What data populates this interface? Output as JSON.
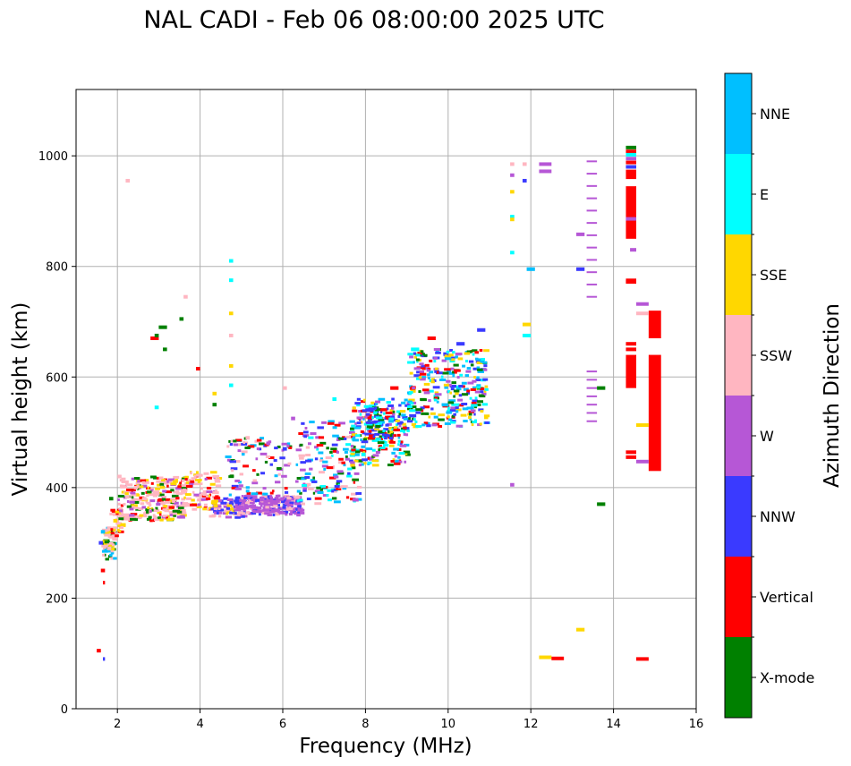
{
  "chart_data": {
    "type": "scatter",
    "title": "NAL CADI - Feb 06 08:00:00 2025 UTC",
    "xlabel": "Frequency (MHz)",
    "ylabel": "Virtual height (km)",
    "xlim": [
      1,
      16
    ],
    "ylim": [
      0,
      1120
    ],
    "xticks": [
      2,
      4,
      6,
      8,
      10,
      12,
      14,
      16
    ],
    "yticks": [
      0,
      200,
      400,
      600,
      800,
      1000
    ],
    "grid": true,
    "colorbar": {
      "label": "Azimuth Direction",
      "categories": [
        "X-mode",
        "Vertical",
        "NNW",
        "W",
        "SSW",
        "SSE",
        "E",
        "NNE"
      ],
      "colors": [
        "#008000",
        "#ff0000",
        "#3a3aff",
        "#b657d6",
        "#ffb6c1",
        "#ffd700",
        "#00ffff",
        "#00bfff"
      ]
    },
    "segments": [
      [
        1.5,
        1.6,
        105,
        1
      ],
      [
        1.65,
        1.7,
        90,
        2
      ],
      [
        1.55,
        1.65,
        300,
        2
      ],
      [
        1.6,
        1.7,
        320,
        7
      ],
      [
        1.6,
        1.7,
        250,
        1
      ],
      [
        1.65,
        1.7,
        228,
        1
      ],
      [
        1.75,
        1.85,
        290,
        4
      ],
      [
        1.9,
        2.0,
        340,
        5
      ],
      [
        1.8,
        1.9,
        380,
        0
      ],
      [
        2.0,
        2.1,
        420,
        4
      ],
      [
        2.2,
        2.3,
        955,
        4
      ],
      [
        2.6,
        2.7,
        380,
        4
      ],
      [
        2.4,
        2.5,
        400,
        4
      ],
      [
        2.9,
        3.0,
        545,
        6
      ],
      [
        2.8,
        3.0,
        670,
        1
      ],
      [
        2.9,
        3.0,
        675,
        0
      ],
      [
        3.0,
        3.2,
        690,
        0
      ],
      [
        3.1,
        3.2,
        650,
        0
      ],
      [
        3.5,
        3.6,
        705,
        0
      ],
      [
        3.6,
        3.7,
        745,
        4
      ],
      [
        3.9,
        4.0,
        615,
        1
      ],
      [
        4.3,
        4.4,
        570,
        5
      ],
      [
        4.3,
        4.4,
        550,
        0
      ],
      [
        4.7,
        4.8,
        810,
        6
      ],
      [
        4.7,
        4.8,
        775,
        6
      ],
      [
        4.7,
        4.8,
        715,
        5
      ],
      [
        4.7,
        4.8,
        675,
        4
      ],
      [
        4.7,
        4.8,
        620,
        5
      ],
      [
        4.7,
        4.8,
        585,
        6
      ],
      [
        5.1,
        5.2,
        490,
        4
      ],
      [
        5.6,
        5.7,
        480,
        3
      ],
      [
        6.0,
        6.1,
        580,
        4
      ],
      [
        6.2,
        6.3,
        525,
        3
      ],
      [
        6.0,
        6.1,
        470,
        2
      ],
      [
        7.2,
        7.3,
        560,
        6
      ],
      [
        7.9,
        8.0,
        460,
        6
      ],
      [
        8.0,
        8.2,
        540,
        2
      ],
      [
        8.6,
        8.8,
        580,
        1
      ],
      [
        9.1,
        9.3,
        650,
        6
      ],
      [
        9.5,
        9.7,
        670,
        1
      ],
      [
        10.2,
        10.4,
        660,
        2
      ],
      [
        10.7,
        10.9,
        685,
        2
      ],
      [
        11.5,
        11.6,
        985,
        4
      ],
      [
        11.5,
        11.6,
        965,
        3
      ],
      [
        11.5,
        11.6,
        935,
        5
      ],
      [
        11.5,
        11.6,
        890,
        6
      ],
      [
        11.5,
        11.6,
        885,
        5
      ],
      [
        11.5,
        11.6,
        825,
        6
      ],
      [
        11.5,
        11.6,
        405,
        3
      ],
      [
        11.8,
        11.9,
        985,
        4
      ],
      [
        11.8,
        11.9,
        955,
        2
      ],
      [
        11.8,
        12.0,
        695,
        5
      ],
      [
        11.8,
        12.0,
        675,
        6
      ],
      [
        11.9,
        12.1,
        795,
        7
      ],
      [
        12.2,
        12.5,
        985,
        3
      ],
      [
        12.2,
        12.5,
        972,
        3
      ],
      [
        12.2,
        12.5,
        93,
        5
      ],
      [
        12.5,
        12.8,
        91,
        1
      ],
      [
        13.1,
        13.3,
        858,
        3
      ],
      [
        13.1,
        13.3,
        795,
        2
      ],
      [
        13.1,
        13.3,
        143,
        5
      ],
      [
        13.6,
        13.8,
        580,
        0
      ],
      [
        13.6,
        13.8,
        370,
        0
      ],
      [
        14.3,
        14.55,
        1015,
        0
      ],
      [
        14.3,
        14.55,
        1008,
        1
      ],
      [
        14.3,
        14.55,
        1002,
        6
      ],
      [
        14.3,
        14.55,
        995,
        3
      ],
      [
        14.3,
        14.55,
        988,
        1
      ],
      [
        14.3,
        14.55,
        980,
        2
      ],
      [
        14.3,
        14.55,
        886,
        3
      ],
      [
        14.3,
        14.55,
        772,
        1
      ],
      [
        14.3,
        14.55,
        660,
        1
      ],
      [
        14.3,
        14.55,
        650,
        1
      ],
      [
        14.3,
        14.55,
        464,
        1
      ],
      [
        14.3,
        14.55,
        455,
        1
      ],
      [
        14.55,
        14.85,
        732,
        3
      ],
      [
        14.55,
        14.85,
        715,
        4
      ],
      [
        14.55,
        14.85,
        513,
        5
      ],
      [
        14.55,
        14.85,
        447,
        3
      ],
      [
        14.55,
        14.85,
        90,
        1
      ],
      [
        14.4,
        14.55,
        830,
        3
      ]
    ],
    "blocks": [
      [
        14.3,
        14.55,
        958,
        975,
        1
      ],
      [
        14.3,
        14.55,
        850,
        945,
        1
      ],
      [
        14.3,
        14.55,
        580,
        640,
        1
      ],
      [
        14.85,
        15.15,
        670,
        720,
        1
      ],
      [
        14.85,
        15.15,
        430,
        640,
        1
      ],
      [
        14.3,
        14.55,
        770,
        778,
        1
      ]
    ],
    "columns": [
      [
        13.35,
        13.6,
        745,
        990,
        3,
        12
      ],
      [
        13.35,
        13.6,
        520,
        610,
        3,
        7
      ]
    ],
    "clusters": [
      [
        1.6,
        1.9,
        270,
        330,
        55,
        [
          4,
          4,
          7,
          0,
          5
        ]
      ],
      [
        1.8,
        2.1,
        310,
        360,
        40,
        [
          5,
          4,
          4,
          1
        ]
      ],
      [
        2.0,
        3.6,
        340,
        420,
        260,
        [
          4,
          4,
          4,
          3,
          5,
          1,
          0
        ]
      ],
      [
        3.5,
        4.4,
        360,
        430,
        90,
        [
          4,
          4,
          3,
          5,
          1
        ]
      ],
      [
        4.2,
        5.0,
        345,
        380,
        70,
        [
          3,
          5,
          4,
          2
        ]
      ],
      [
        4.8,
        6.4,
        350,
        385,
        240,
        [
          3,
          3,
          3,
          4,
          2
        ]
      ],
      [
        4.6,
        6.2,
        385,
        490,
        90,
        [
          4,
          3,
          1,
          0,
          7,
          2
        ]
      ],
      [
        6.3,
        7.8,
        370,
        520,
        160,
        [
          3,
          4,
          2,
          6,
          0,
          1,
          7
        ]
      ],
      [
        7.6,
        9.0,
        440,
        560,
        210,
        [
          2,
          6,
          7,
          1,
          0,
          3,
          5
        ]
      ],
      [
        9.0,
        10.9,
        510,
        650,
        300,
        [
          2,
          6,
          7,
          1,
          0,
          3,
          5
        ]
      ],
      [
        8.0,
        8.6,
        480,
        545,
        60,
        [
          2,
          1,
          0,
          6
        ]
      ]
    ]
  }
}
